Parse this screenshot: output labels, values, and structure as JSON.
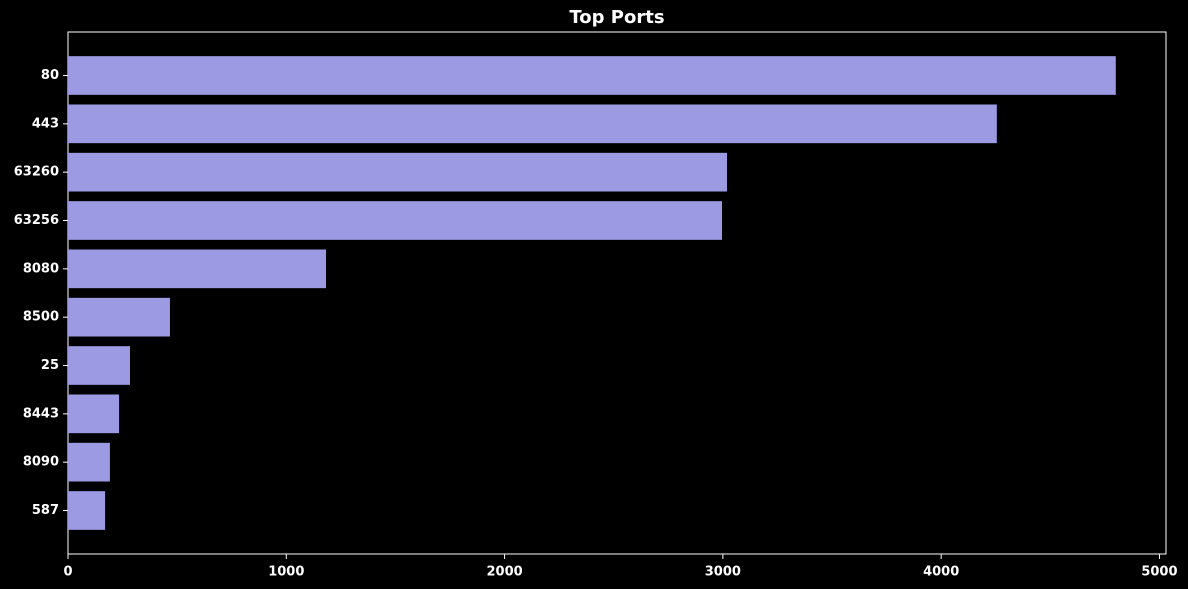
{
  "chart_data": {
    "type": "barh",
    "title": "Top Ports",
    "categories": [
      "80",
      "443",
      "63260",
      "63256",
      "8080",
      "8500",
      "25",
      "8443",
      "8090",
      "587"
    ],
    "values": [
      4800,
      4255,
      3019,
      2996,
      1182,
      467,
      284,
      234,
      192,
      170
    ],
    "color": "#9b9ae3",
    "xlim": [
      0,
      5030
    ],
    "xticks": [
      0,
      1000,
      2000,
      3000,
      4000,
      5000
    ],
    "grid": false
  }
}
